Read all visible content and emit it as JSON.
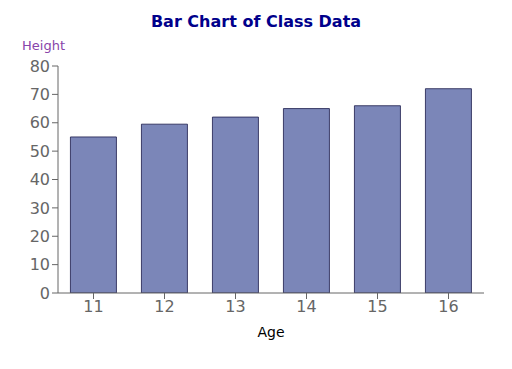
{
  "chart_data": {
    "type": "bar",
    "title": "Bar Chart of Class Data",
    "xlabel": "Age",
    "ylabel": "Height",
    "categories": [
      "11",
      "12",
      "13",
      "14",
      "15",
      "16"
    ],
    "values": [
      55,
      59.5,
      62,
      65,
      66,
      72
    ],
    "color": "#7B86B8",
    "ylim": [
      0,
      80
    ],
    "yticks": [
      0,
      10,
      20,
      30,
      40,
      50,
      60,
      70,
      80
    ],
    "grid": false
  }
}
